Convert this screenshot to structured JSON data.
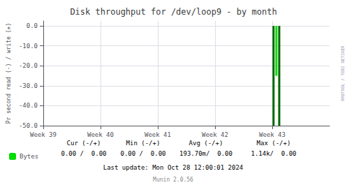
{
  "chart_data": {
    "type": "bar",
    "title": "Disk throughput for /dev/loop9 - by month",
    "ylabel": "Pr second read (-) / write (+)",
    "x": [
      28.15,
      28.5,
      28.85
    ],
    "series": [
      {
        "name": "Bytes",
        "color": "#00dd00",
        "colors": [
          "#006600",
          "#00dd00",
          "#006600"
        ],
        "values": [
          -50.0,
          -25.0,
          -50.0
        ]
      }
    ],
    "xlim": [
      0,
      35
    ],
    "xticks": [
      {
        "value": 0,
        "label": "Week 39"
      },
      {
        "value": 7,
        "label": "Week 40"
      },
      {
        "value": 14,
        "label": "Week 41"
      },
      {
        "value": 21,
        "label": "Week 42"
      },
      {
        "value": 28,
        "label": "Week 43"
      }
    ],
    "ylim": [
      -50,
      2.5
    ],
    "yticks": [
      {
        "value": 0,
        "label": "0.0"
      },
      {
        "value": -10,
        "label": "-10.0"
      },
      {
        "value": -20,
        "label": "-20.0"
      },
      {
        "value": -30,
        "label": "-30.0"
      },
      {
        "value": -40,
        "label": "-40.0"
      },
      {
        "value": -50,
        "label": "-50.0"
      }
    ],
    "grid": true,
    "legend": "bottom",
    "annotations": [
      "Cur (-/+)",
      "Min (-/+)",
      "Avg (-/+)",
      "Max (-/+)",
      "0.00 /  0.00",
      "0.00 /  0.00",
      "193.70m/  0.00",
      "1.14k/  0.00",
      "Last update: Mon Oct 28 12:00:01 2024",
      "Munin 2.0.56",
      "RRDTOOL / TOBI OETIKER"
    ]
  }
}
